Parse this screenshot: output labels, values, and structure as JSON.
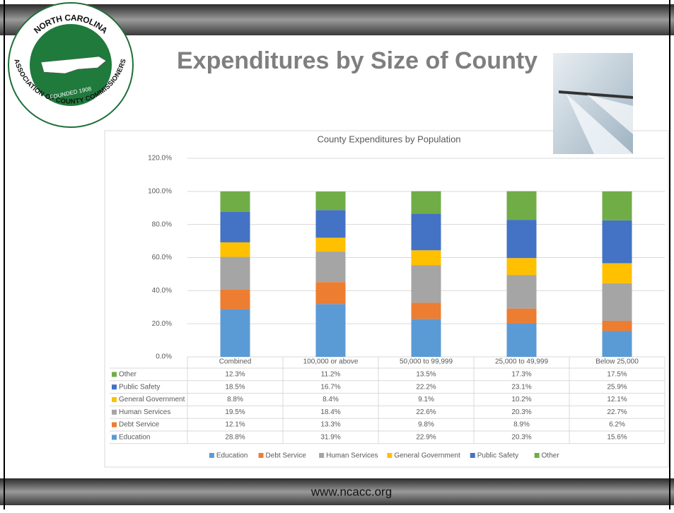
{
  "logo": {
    "top_text": "NORTH CAROLINA",
    "bottom_text": "ASSOCIATION OF COUNTY COMMISSIONERS",
    "founded": "FOUNDED 1908"
  },
  "slide_title": "Expenditures by Size of County",
  "footer": "www.ncacc.org",
  "chart_data": {
    "type": "bar",
    "stacked": true,
    "title": "County Expenditures by Population",
    "categories": [
      "Combined",
      "100,000 or above",
      "50,000 to 99,999",
      "25,000 to 49,999",
      "Below 25,000"
    ],
    "series": [
      {
        "name": "Education",
        "color": "#5b9bd5",
        "values": [
          28.8,
          31.9,
          22.9,
          20.3,
          15.6
        ],
        "value_labels": [
          "28.8%",
          "31.9%",
          "22.9%",
          "20.3%",
          "15.6%"
        ]
      },
      {
        "name": "Debt Service",
        "color": "#ed7d31",
        "values": [
          12.1,
          13.3,
          9.8,
          8.9,
          6.2
        ],
        "value_labels": [
          "12.1%",
          "13.3%",
          "9.8%",
          "8.9%",
          "6.2%"
        ]
      },
      {
        "name": "Human Services",
        "color": "#a5a5a5",
        "values": [
          19.5,
          18.4,
          22.6,
          20.3,
          22.7
        ],
        "value_labels": [
          "19.5%",
          "18.4%",
          "22.6%",
          "20.3%",
          "22.7%"
        ]
      },
      {
        "name": "General Government",
        "color": "#ffc000",
        "values": [
          8.8,
          8.4,
          9.1,
          10.2,
          12.1
        ],
        "value_labels": [
          "8.8%",
          "8.4%",
          "9.1%",
          "10.2%",
          "12.1%"
        ]
      },
      {
        "name": "Public Safety",
        "color": "#4472c4",
        "values": [
          18.5,
          16.7,
          22.2,
          23.1,
          25.9
        ],
        "value_labels": [
          "18.5%",
          "16.7%",
          "22.2%",
          "23.1%",
          "25.9%"
        ]
      },
      {
        "name": "Other",
        "color": "#70ad47",
        "values": [
          12.3,
          11.2,
          13.5,
          17.3,
          17.5
        ],
        "value_labels": [
          "12.3%",
          "11.2%",
          "13.5%",
          "17.3%",
          "17.5%"
        ]
      }
    ],
    "ylim": [
      0,
      120
    ],
    "yticks": [
      {
        "value": 0,
        "label": "0.0%"
      },
      {
        "value": 20,
        "label": "20.0%"
      },
      {
        "value": 40,
        "label": "40.0%"
      },
      {
        "value": 60,
        "label": "60.0%"
      },
      {
        "value": 80,
        "label": "80.0%"
      },
      {
        "value": 100,
        "label": "100.0%"
      },
      {
        "value": 120,
        "label": "120.0%"
      }
    ],
    "grid": true
  }
}
